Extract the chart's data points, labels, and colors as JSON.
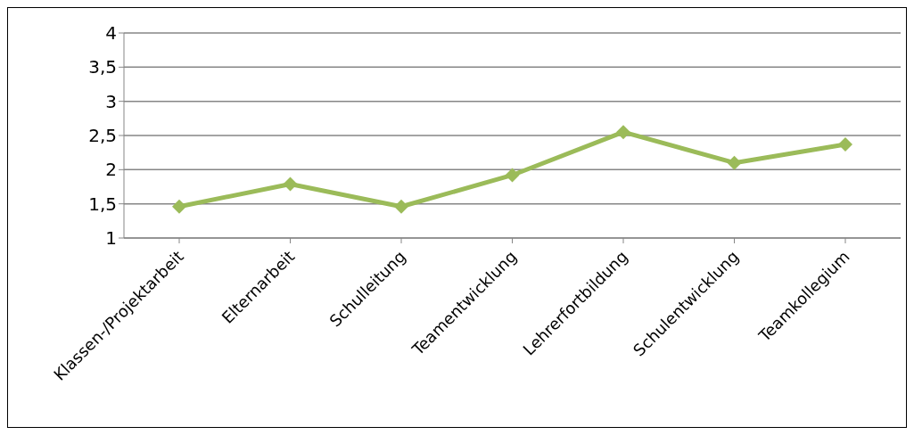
{
  "chart_data": {
    "type": "line",
    "categories": [
      "Klassen-/Projektarbeit",
      "Elternarbeit",
      "Schulleitung",
      "Teamentwicklung",
      "Lehrerfortbildung",
      "Schulentwicklung",
      "Teamkollegium"
    ],
    "series": [
      {
        "color": "#9bbb59",
        "values": [
          1.46,
          1.79,
          1.46,
          1.92,
          2.55,
          2.1,
          2.37
        ]
      }
    ],
    "ylim": [
      1,
      4
    ],
    "yticks": [
      1,
      {
        "value": 1.5,
        "label": "1,5"
      },
      2,
      {
        "value": 2.5,
        "label": "2,5"
      },
      3,
      {
        "value": 3.5,
        "label": "3,5"
      },
      4
    ],
    "grid": "y",
    "marker": "diamond",
    "line_style": "solid",
    "legend": false
  }
}
